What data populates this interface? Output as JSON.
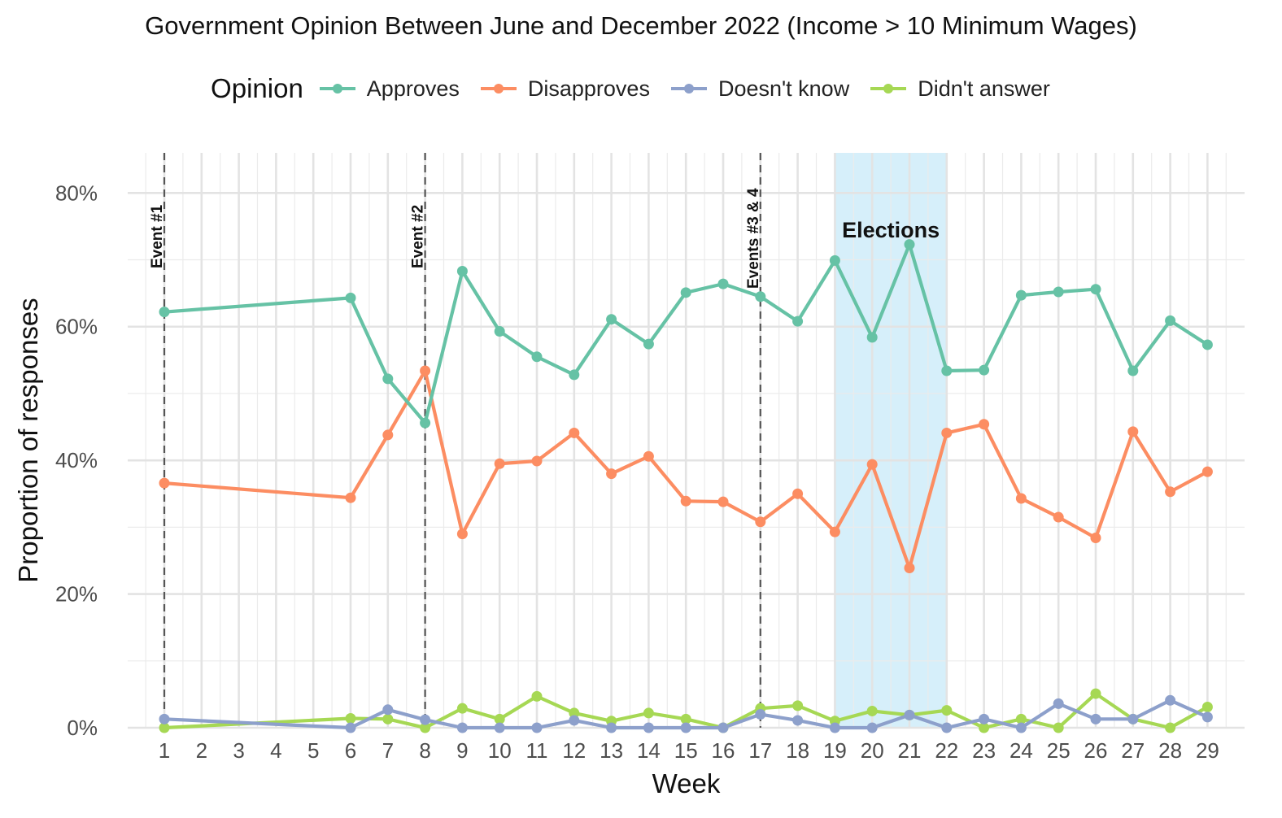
{
  "chart_data": {
    "type": "line",
    "title": "Government Opinion Between June and December 2022 (Income > 10 Minimum Wages)",
    "xlabel": "Week",
    "ylabel": "Proportion of responses",
    "legend_title": "Opinion",
    "legend_position": "top",
    "grid": true,
    "x_ticks": [
      1,
      2,
      3,
      4,
      5,
      6,
      7,
      8,
      9,
      10,
      11,
      12,
      13,
      14,
      15,
      16,
      17,
      18,
      19,
      20,
      21,
      22,
      23,
      24,
      25,
      26,
      27,
      28,
      29
    ],
    "y_ticks": [
      "0%",
      "20%",
      "40%",
      "60%",
      "80%"
    ],
    "ylim": [
      0,
      0.86
    ],
    "x": [
      1,
      6,
      7,
      8,
      9,
      10,
      11,
      12,
      13,
      14,
      15,
      16,
      17,
      18,
      19,
      20,
      21,
      22,
      23,
      24,
      25,
      26,
      27,
      28,
      29
    ],
    "series": [
      {
        "name": "Approves",
        "color": "#66c2a5",
        "values": [
          0.622,
          0.643,
          0.522,
          0.456,
          0.683,
          0.593,
          0.555,
          0.528,
          0.611,
          0.574,
          0.651,
          0.664,
          0.645,
          0.608,
          0.699,
          0.584,
          0.723,
          0.534,
          0.535,
          0.647,
          0.652,
          0.656,
          0.534,
          0.609,
          0.573
        ]
      },
      {
        "name": "Disapproves",
        "color": "#fc8d62",
        "values": [
          0.366,
          0.344,
          0.438,
          0.534,
          0.29,
          0.395,
          0.399,
          0.441,
          0.38,
          0.406,
          0.339,
          0.338,
          0.308,
          0.35,
          0.293,
          0.394,
          0.239,
          0.441,
          0.454,
          0.343,
          0.315,
          0.284,
          0.443,
          0.353,
          0.383
        ]
      },
      {
        "name": "Doesn't know",
        "color": "#8da0cb",
        "values": [
          0.013,
          0.0,
          0.027,
          0.012,
          0.0,
          0.0,
          0.0,
          0.011,
          0.0,
          0.0,
          0.0,
          0.0,
          0.02,
          0.011,
          0.0,
          0.0,
          0.019,
          0.0,
          0.013,
          0.0,
          0.036,
          0.013,
          0.013,
          0.041,
          0.016
        ]
      },
      {
        "name": "Didn't answer",
        "color": "#a6d854",
        "values": [
          0.0,
          0.014,
          0.013,
          0.0,
          0.029,
          0.013,
          0.047,
          0.022,
          0.01,
          0.022,
          0.013,
          0.0,
          0.029,
          0.033,
          0.01,
          0.025,
          0.019,
          0.026,
          0.0,
          0.013,
          0.0,
          0.051,
          0.013,
          0.0,
          0.031
        ]
      }
    ],
    "events": [
      {
        "week": 1,
        "label": "Event #1"
      },
      {
        "week": 8,
        "label": "Event #2"
      },
      {
        "week": 17,
        "label": "Events #3 & 4"
      }
    ],
    "shaded_region": {
      "from": 19,
      "to": 22,
      "label": "Elections",
      "color": "#d6effa"
    }
  }
}
